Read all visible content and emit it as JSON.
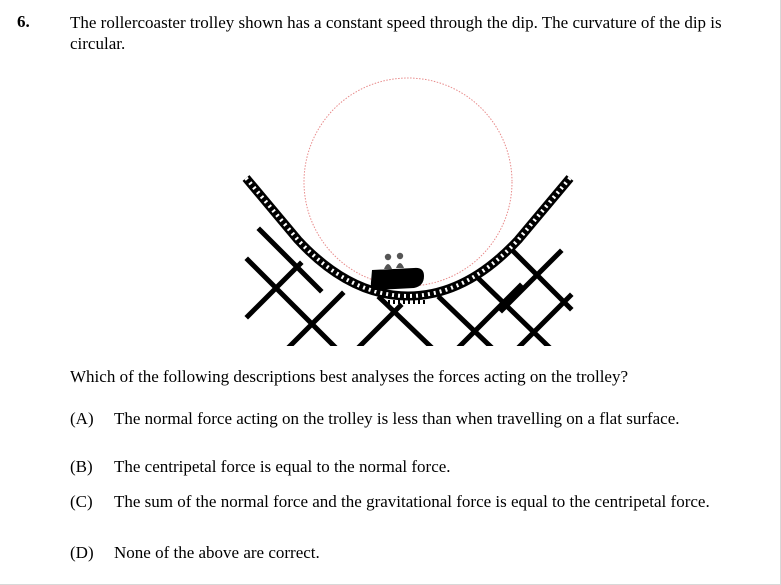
{
  "question": {
    "number": "6.",
    "stem": "The rollercoaster trolley shown has a constant speed through the dip. The curvature of the dip is circular.",
    "prompt": "Which of the following descriptions best analyses the forces acting on the trolley?",
    "options": [
      {
        "letter": "(A)",
        "text": "The normal force acting on the trolley is less than when travelling on a flat surface."
      },
      {
        "letter": "(B)",
        "text": "The centripetal force is equal to the normal force."
      },
      {
        "letter": "(C)",
        "text": "The sum of the normal force and the gravitational force is equal to the centripetal force."
      },
      {
        "letter": "(D)",
        "text": "None of the above are correct."
      }
    ]
  },
  "figure": {
    "circle_color": "#e88a8a",
    "track_color": "#000000"
  }
}
